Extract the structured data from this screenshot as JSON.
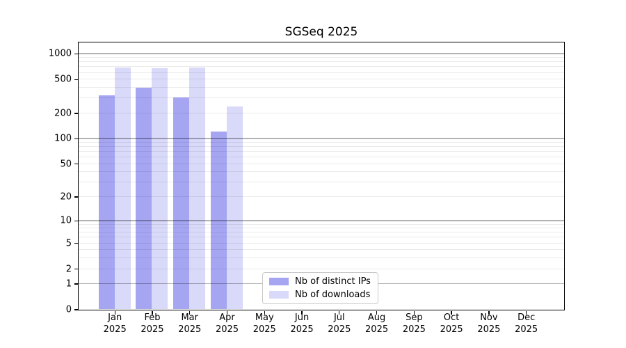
{
  "chart_data": {
    "type": "bar",
    "title": "SGSeq 2025",
    "months": [
      "Jan",
      "Feb",
      "Mar",
      "Apr",
      "May",
      "Jun",
      "Jul",
      "Aug",
      "Sep",
      "Oct",
      "Nov",
      "Dec"
    ],
    "year": "2025",
    "categories": [
      "Jan 2025",
      "Feb 2025",
      "Mar 2025",
      "Apr 2025",
      "May 2025",
      "Jun 2025",
      "Jul 2025",
      "Aug 2025",
      "Sep 2025",
      "Oct 2025",
      "Nov 2025",
      "Dec 2025"
    ],
    "series": [
      {
        "name": "Nb of distinct IPs",
        "color": "#a5a5f2",
        "values": [
          325,
          395,
          305,
          120,
          0,
          0,
          0,
          0,
          0,
          0,
          0,
          0
        ]
      },
      {
        "name": "Nb of downloads",
        "color": "#d9d9f9",
        "values": [
          690,
          670,
          685,
          240,
          0,
          0,
          0,
          0,
          0,
          0,
          0,
          0
        ]
      }
    ],
    "y_scale": "log10(value+1)",
    "y_ticks": [
      0,
      1,
      2,
      5,
      10,
      20,
      50,
      100,
      200,
      500,
      1000
    ],
    "ylim": [
      0,
      1350
    ],
    "grid": "horizontal log-decade gridlines, minor light / major darker, drawn above bars",
    "legend_position": "inside, lower center-left"
  }
}
